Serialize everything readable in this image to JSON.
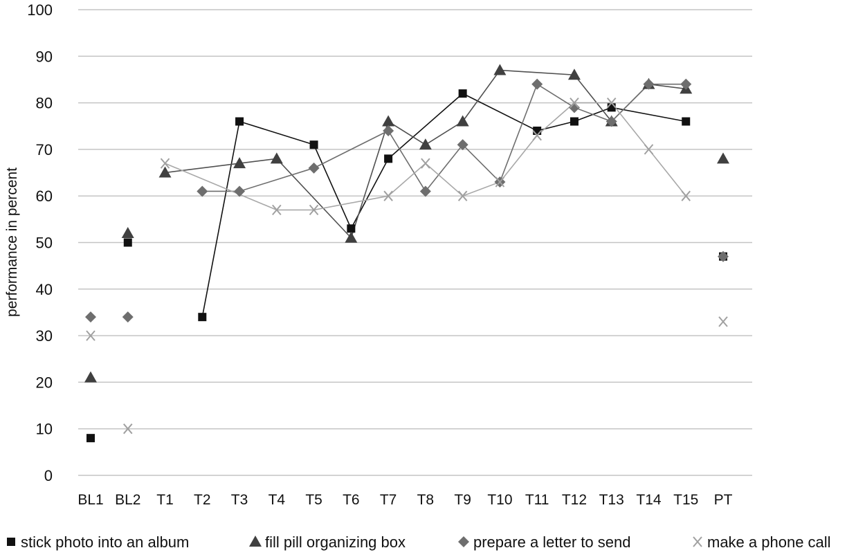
{
  "chart_data": {
    "type": "line",
    "title": "",
    "xlabel": "",
    "ylabel": "performance in percent",
    "ylim": [
      0,
      100
    ],
    "yticks": [
      0,
      10,
      20,
      30,
      40,
      50,
      60,
      70,
      80,
      90,
      100
    ],
    "grid": true,
    "legend_position": "bottom",
    "categories": [
      "BL1",
      "BL2",
      "T1",
      "T2",
      "T3",
      "T4",
      "T5",
      "T6",
      "T7",
      "T8",
      "T9",
      "T10",
      "T11",
      "T12",
      "T13",
      "T14",
      "T15",
      "PT"
    ],
    "series": [
      {
        "name": "stick photo into an album",
        "marker": "square",
        "color": "#111111",
        "line_color": "#111111",
        "values": [
          8,
          50,
          null,
          34,
          76,
          null,
          71,
          53,
          68,
          null,
          82,
          null,
          74,
          76,
          79,
          null,
          76,
          47
        ]
      },
      {
        "name": "fill pill organizing box",
        "marker": "triangle",
        "color": "#404040",
        "line_color": "#505050",
        "values": [
          21,
          52,
          65,
          null,
          67,
          68,
          null,
          51,
          76,
          71,
          76,
          87,
          null,
          86,
          76,
          84,
          83,
          68
        ]
      },
      {
        "name": "prepare a letter to send",
        "marker": "diamond",
        "color": "#6e6e6e",
        "line_color": "#6e6e6e",
        "values": [
          34,
          34,
          null,
          61,
          61,
          null,
          66,
          null,
          74,
          61,
          71,
          63,
          84,
          79,
          76,
          84,
          84,
          47
        ]
      },
      {
        "name": "make a phone call",
        "marker": "x",
        "color": "#a0a0a0",
        "line_color": "#a8a8a8",
        "values": [
          30,
          10,
          67,
          null,
          null,
          57,
          57,
          null,
          60,
          67,
          60,
          63,
          73,
          80,
          80,
          70,
          60,
          33
        ]
      }
    ]
  }
}
